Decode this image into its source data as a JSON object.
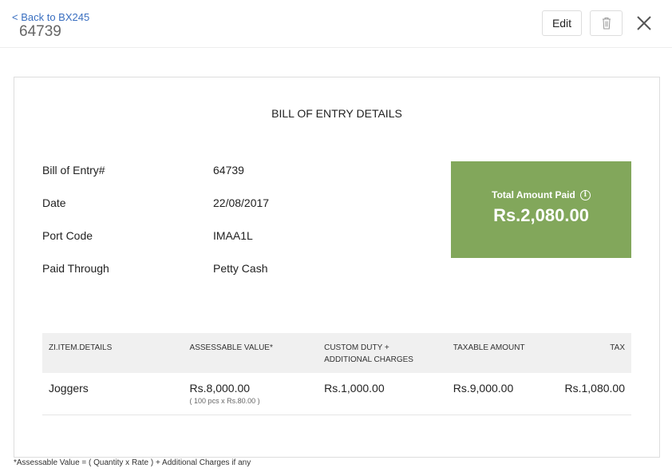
{
  "header": {
    "back_link": "< Back to BX245",
    "title": "64739",
    "edit_label": "Edit",
    "delete_icon": "trash-icon",
    "close_icon": "close-icon"
  },
  "card": {
    "heading": "BILL OF ENTRY DETAILS",
    "fields": [
      {
        "label": "Bill of Entry#",
        "value": "64739"
      },
      {
        "label": "Date",
        "value": "22/08/2017"
      },
      {
        "label": "Port Code",
        "value": "IMAA1L"
      },
      {
        "label": "Paid Through",
        "value": "Petty Cash"
      }
    ],
    "total": {
      "label": "Total Amount Paid",
      "amount": "Rs.2,080.00",
      "color": "#82a75b",
      "info_icon": "info-icon"
    },
    "table": {
      "headers": [
        "ZI.ITEM.DETAILS",
        "ASSESSABLE VALUE*",
        "CUSTOM DUTY + ADDITIONAL CHARGES",
        "TAXABLE AMOUNT",
        "TAX"
      ],
      "rows": [
        {
          "item": "Joggers",
          "assessable": "Rs.8,000.00",
          "assessable_note": "( 100 pcs x Rs.80.00 )",
          "custom_duty": "Rs.1,000.00",
          "taxable": "Rs.9,000.00",
          "tax": "Rs.1,080.00"
        }
      ]
    }
  },
  "footnote": "*Assessable Value = ( Quantity x Rate ) + Additional Charges if any"
}
